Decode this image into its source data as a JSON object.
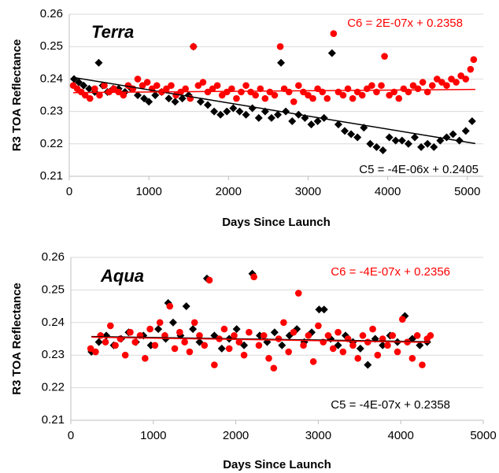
{
  "chart_data": [
    {
      "type": "scatter",
      "label": "Terra",
      "x_label": "Days Since Launch",
      "y_label": "R3 TOA Reflectance",
      "xlim": [
        0,
        5200
      ],
      "ylim": [
        0.21,
        0.26
      ],
      "xticks": [
        0,
        1000,
        2000,
        3000,
        4000,
        5000
      ],
      "yticks": [
        0.21,
        0.22,
        0.23,
        0.24,
        0.25,
        0.26
      ],
      "grid": true,
      "series": [
        {
          "color": "#000000",
          "marker": "diamond",
          "x": [
            60,
            120,
            180,
            250,
            320,
            370,
            420,
            480,
            550,
            620,
            700,
            780,
            860,
            940,
            1000,
            1080,
            1160,
            1250,
            1330,
            1420,
            1500,
            1560,
            1650,
            1740,
            1820,
            1900,
            1980,
            2060,
            2140,
            2220,
            2300,
            2380,
            2460,
            2540,
            2620,
            2660,
            2720,
            2800,
            2880,
            2960,
            3040,
            3120,
            3200,
            3300,
            3380,
            3460,
            3540,
            3620,
            3700,
            3780,
            3860,
            3940,
            4020,
            4100,
            4180,
            4260,
            4340,
            4420,
            4500,
            4580,
            4660,
            4740,
            4820,
            4900,
            4980,
            5060
          ],
          "values": [
            0.24,
            0.239,
            0.238,
            0.237,
            0.236,
            0.245,
            0.238,
            0.236,
            0.237,
            0.237,
            0.236,
            0.237,
            0.235,
            0.234,
            0.233,
            0.235,
            0.236,
            0.234,
            0.233,
            0.234,
            0.235,
            0.25,
            0.233,
            0.232,
            0.23,
            0.229,
            0.23,
            0.231,
            0.23,
            0.229,
            0.231,
            0.228,
            0.23,
            0.228,
            0.229,
            0.245,
            0.23,
            0.227,
            0.229,
            0.228,
            0.226,
            0.227,
            0.228,
            0.248,
            0.226,
            0.224,
            0.223,
            0.222,
            0.225,
            0.22,
            0.219,
            0.218,
            0.222,
            0.221,
            0.221,
            0.22,
            0.222,
            0.219,
            0.22,
            0.219,
            0.221,
            0.222,
            0.223,
            0.221,
            0.224,
            0.227
          ],
          "trend": {
            "x": [
              50,
              5100
            ],
            "y": [
              0.2405,
              0.2201
            ]
          }
        },
        {
          "color": "#ff0000",
          "marker": "circle",
          "x": [
            50,
            100,
            150,
            200,
            260,
            320,
            380,
            440,
            500,
            560,
            620,
            680,
            740,
            800,
            860,
            920,
            980,
            1040,
            1100,
            1160,
            1220,
            1280,
            1340,
            1400,
            1460,
            1520,
            1560,
            1620,
            1680,
            1740,
            1800,
            1860,
            1920,
            1980,
            2040,
            2100,
            2160,
            2220,
            2280,
            2340,
            2400,
            2460,
            2520,
            2580,
            2650,
            2700,
            2760,
            2820,
            2880,
            2940,
            3000,
            3060,
            3120,
            3180,
            3240,
            3320,
            3380,
            3440,
            3500,
            3560,
            3620,
            3680,
            3740,
            3800,
            3860,
            3920,
            3960,
            4020,
            4080,
            4140,
            4200,
            4260,
            4320,
            4380,
            4440,
            4500,
            4560,
            4620,
            4680,
            4740,
            4800,
            4860,
            4920,
            4980,
            5040,
            5080
          ],
          "values": [
            0.238,
            0.237,
            0.236,
            0.235,
            0.234,
            0.237,
            0.235,
            0.238,
            0.236,
            0.237,
            0.236,
            0.235,
            0.238,
            0.237,
            0.24,
            0.238,
            0.239,
            0.237,
            0.238,
            0.236,
            0.237,
            0.238,
            0.235,
            0.236,
            0.237,
            0.234,
            0.25,
            0.238,
            0.239,
            0.236,
            0.237,
            0.238,
            0.235,
            0.236,
            0.237,
            0.234,
            0.236,
            0.238,
            0.236,
            0.235,
            0.237,
            0.234,
            0.236,
            0.235,
            0.25,
            0.237,
            0.236,
            0.233,
            0.238,
            0.236,
            0.235,
            0.234,
            0.237,
            0.236,
            0.234,
            0.254,
            0.236,
            0.235,
            0.237,
            0.234,
            0.236,
            0.235,
            0.237,
            0.238,
            0.236,
            0.238,
            0.247,
            0.235,
            0.236,
            0.234,
            0.237,
            0.236,
            0.238,
            0.237,
            0.239,
            0.236,
            0.238,
            0.24,
            0.239,
            0.238,
            0.24,
            0.239,
            0.241,
            0.24,
            0.243,
            0.246
          ],
          "trend": {
            "x": [
              50,
              5100
            ],
            "y": [
              0.2358,
              0.2368
            ]
          }
        }
      ],
      "annotations": [
        {
          "text": "C6 = 2E-07x + 0.2358",
          "color": "#ff0000"
        },
        {
          "text": "C5 = -4E-06x + 0.2405",
          "color": "#000000"
        }
      ]
    },
    {
      "type": "scatter",
      "label": "Aqua",
      "x_label": "Days Since Launch",
      "y_label": "R3 TOA Reflectance",
      "xlim": [
        0,
        5000
      ],
      "ylim": [
        0.21,
        0.26
      ],
      "xticks": [
        0,
        1000,
        2000,
        3000,
        4000,
        5000
      ],
      "yticks": [
        0.21,
        0.22,
        0.23,
        0.24,
        0.25,
        0.26
      ],
      "grid": true,
      "series": [
        {
          "color": "#000000",
          "marker": "diamond",
          "x": [
            250,
            340,
            430,
            520,
            610,
            700,
            790,
            880,
            970,
            1060,
            1150,
            1180,
            1240,
            1330,
            1400,
            1480,
            1560,
            1650,
            1740,
            1830,
            1920,
            2010,
            2100,
            2200,
            2290,
            2380,
            2470,
            2560,
            2650,
            2740,
            2830,
            2920,
            3010,
            3070,
            3150,
            3240,
            3330,
            3420,
            3510,
            3600,
            3690,
            3780,
            3870,
            3960,
            4050,
            4140,
            4230,
            4320
          ],
          "values": [
            0.231,
            0.234,
            0.236,
            0.233,
            0.235,
            0.237,
            0.234,
            0.236,
            0.233,
            0.238,
            0.235,
            0.246,
            0.24,
            0.236,
            0.245,
            0.238,
            0.234,
            0.2535,
            0.236,
            0.232,
            0.235,
            0.238,
            0.233,
            0.255,
            0.236,
            0.234,
            0.237,
            0.233,
            0.236,
            0.238,
            0.234,
            0.237,
            0.244,
            0.244,
            0.235,
            0.233,
            0.236,
            0.234,
            0.232,
            0.227,
            0.235,
            0.233,
            0.236,
            0.234,
            0.242,
            0.235,
            0.233,
            0.234
          ],
          "trend": {
            "x": [
              250,
              4350
            ],
            "y": [
              0.2357,
              0.2341
            ]
          }
        },
        {
          "color": "#ff0000",
          "marker": "circle",
          "x": [
            240,
            300,
            360,
            420,
            480,
            540,
            600,
            660,
            720,
            780,
            840,
            900,
            960,
            1020,
            1080,
            1140,
            1200,
            1260,
            1320,
            1380,
            1440,
            1500,
            1560,
            1620,
            1680,
            1740,
            1800,
            1860,
            1920,
            1980,
            2040,
            2100,
            2160,
            2220,
            2280,
            2340,
            2400,
            2460,
            2520,
            2580,
            2640,
            2700,
            2760,
            2820,
            2880,
            2940,
            3000,
            3060,
            3120,
            3180,
            3240,
            3300,
            3360,
            3420,
            3480,
            3540,
            3600,
            3660,
            3720,
            3780,
            3840,
            3900,
            3960,
            4020,
            4080,
            4140,
            4200,
            4260,
            4320,
            4360
          ],
          "values": [
            0.232,
            0.231,
            0.236,
            0.234,
            0.239,
            0.233,
            0.235,
            0.23,
            0.237,
            0.234,
            0.236,
            0.229,
            0.238,
            0.233,
            0.24,
            0.236,
            0.245,
            0.232,
            0.237,
            0.234,
            0.231,
            0.24,
            0.236,
            0.233,
            0.253,
            0.227,
            0.235,
            0.238,
            0.232,
            0.236,
            0.234,
            0.23,
            0.237,
            0.254,
            0.233,
            0.236,
            0.229,
            0.226,
            0.235,
            0.24,
            0.231,
            0.237,
            0.249,
            0.233,
            0.236,
            0.228,
            0.239,
            0.234,
            0.236,
            0.232,
            0.237,
            0.231,
            0.235,
            0.233,
            0.229,
            0.236,
            0.234,
            0.238,
            0.23,
            0.235,
            0.233,
            0.236,
            0.231,
            0.241,
            0.234,
            0.229,
            0.236,
            0.227,
            0.235,
            0.236
          ],
          "trend": {
            "x": [
              250,
              4350
            ],
            "y": [
              0.2355,
              0.2339
            ]
          }
        }
      ],
      "annotations": [
        {
          "text": "C6 = -4E-07x + 0.2356",
          "color": "#ff0000"
        },
        {
          "text": "C5 = -4E-07x + 0.2358",
          "color": "#000000"
        }
      ]
    }
  ]
}
